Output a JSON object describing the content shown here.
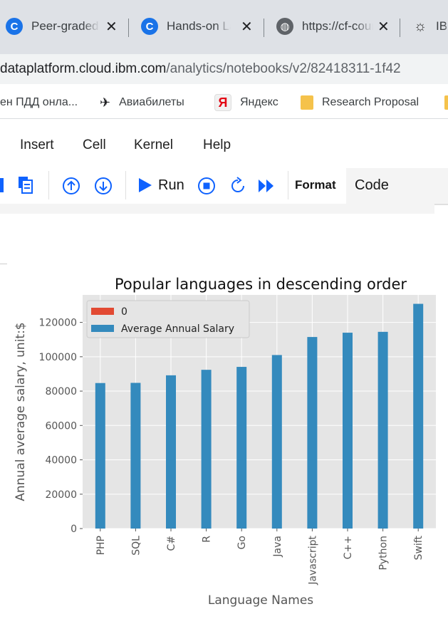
{
  "tabs": [
    {
      "label": "Peer-graded Assignment",
      "icon": "coursera-icon"
    },
    {
      "label": "Hands-on Lab",
      "icon": "coursera-icon"
    },
    {
      "label": "https://cf-course",
      "icon": "globe-icon"
    },
    {
      "label": "IBM",
      "icon": "ibm-watson-icon"
    }
  ],
  "address": {
    "domain": "dataplatform.cloud.ibm.com",
    "path": "/analytics/notebooks/v2/82418311-1f42"
  },
  "bookmarks": [
    {
      "label": "ен ПДД онла...",
      "icon": "none"
    },
    {
      "label": "Авиабилеты",
      "icon": "plane-icon"
    },
    {
      "label": "Яндекс",
      "icon": "yandex-icon"
    },
    {
      "label": "Research Proposal",
      "icon": "folder-icon"
    }
  ],
  "menu": [
    "Insert",
    "Cell",
    "Kernel",
    "Help"
  ],
  "toolbar": {
    "run_label": "Run",
    "format_label": "Format",
    "cell_type": "Code"
  },
  "chart_data": {
    "type": "bar",
    "title": "Popular languages in descending order",
    "xlabel": "Language Names",
    "ylabel": "Annual average salary, unit:$",
    "categories": [
      "PHP",
      "SQL",
      "C#",
      "R",
      "Go",
      "Java",
      "Javascript",
      "C++",
      "Python",
      "Swift"
    ],
    "series": [
      {
        "name": "0",
        "values": [
          0,
          0,
          0,
          0,
          0,
          0,
          0,
          0,
          0,
          0
        ],
        "color": "#e24a33"
      },
      {
        "name": "Average Annual Salary",
        "values": [
          84700,
          84800,
          89200,
          92400,
          94100,
          101000,
          111500,
          114000,
          114500,
          130800
        ],
        "color": "#348abd"
      }
    ],
    "ylim": [
      0,
      136000
    ],
    "yticks": [
      0,
      20000,
      40000,
      60000,
      80000,
      100000,
      120000
    ],
    "grid": true,
    "legend": "top-left",
    "background": "#e5e5e5"
  }
}
